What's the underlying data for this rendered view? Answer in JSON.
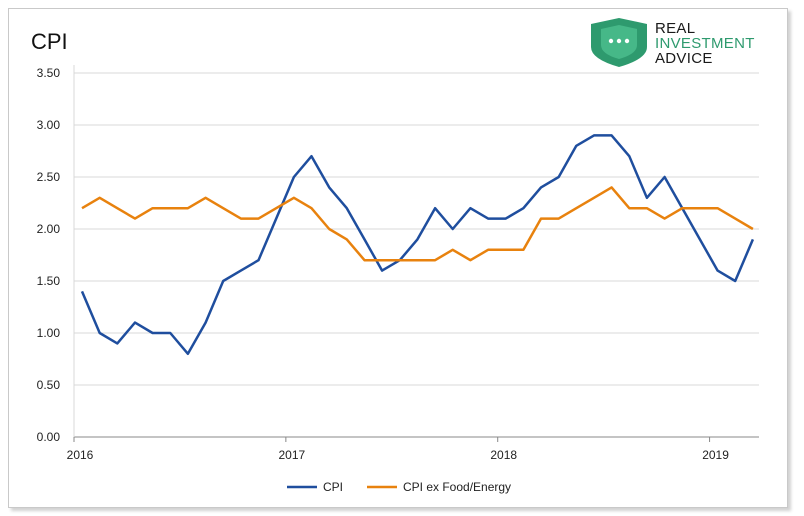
{
  "brand": {
    "line1": "REAL",
    "line2": "INVESTMENT",
    "line3": "ADVICE",
    "dark_color": "#1a1a1a",
    "accent_color": "#2e9a6e",
    "icon": "shield-icon"
  },
  "chart_data": {
    "type": "line",
    "title": "CPI",
    "xlabel": "",
    "ylabel": "",
    "ylim": [
      0,
      3.5
    ],
    "yticks": [
      "0.00",
      "0.50",
      "1.00",
      "1.50",
      "2.00",
      "2.50",
      "3.00",
      "3.50"
    ],
    "xticks": [
      "2016",
      "2017",
      "2018",
      "2019"
    ],
    "x": [
      "2016-01",
      "2016-02",
      "2016-03",
      "2016-04",
      "2016-05",
      "2016-06",
      "2016-07",
      "2016-08",
      "2016-09",
      "2016-10",
      "2016-11",
      "2016-12",
      "2017-01",
      "2017-02",
      "2017-03",
      "2017-04",
      "2017-05",
      "2017-06",
      "2017-07",
      "2017-08",
      "2017-09",
      "2017-10",
      "2017-11",
      "2017-12",
      "2018-01",
      "2018-02",
      "2018-03",
      "2018-04",
      "2018-05",
      "2018-06",
      "2018-07",
      "2018-08",
      "2018-09",
      "2018-10",
      "2018-11",
      "2018-12",
      "2019-01",
      "2019-02",
      "2019-03"
    ],
    "grid": "horizontal",
    "legend": "bottom-center",
    "series": [
      {
        "name": "CPI",
        "color": "#1f4e9e",
        "values": [
          1.4,
          1.0,
          0.9,
          1.1,
          1.0,
          1.0,
          0.8,
          1.1,
          1.5,
          1.6,
          1.7,
          2.1,
          2.5,
          2.7,
          2.4,
          2.2,
          1.9,
          1.6,
          1.7,
          1.9,
          2.2,
          2.0,
          2.2,
          2.1,
          2.1,
          2.2,
          2.4,
          2.5,
          2.8,
          2.9,
          2.9,
          2.7,
          2.3,
          2.5,
          2.2,
          1.9,
          1.6,
          1.5,
          1.9
        ]
      },
      {
        "name": "CPI ex Food/Energy",
        "color": "#e8820e",
        "values": [
          2.2,
          2.3,
          2.2,
          2.1,
          2.2,
          2.2,
          2.2,
          2.3,
          2.2,
          2.1,
          2.1,
          2.2,
          2.3,
          2.2,
          2.0,
          1.9,
          1.7,
          1.7,
          1.7,
          1.7,
          1.7,
          1.8,
          1.7,
          1.8,
          1.8,
          1.8,
          2.1,
          2.1,
          2.2,
          2.3,
          2.4,
          2.2,
          2.2,
          2.1,
          2.2,
          2.2,
          2.2,
          2.1,
          2.0
        ]
      }
    ]
  }
}
